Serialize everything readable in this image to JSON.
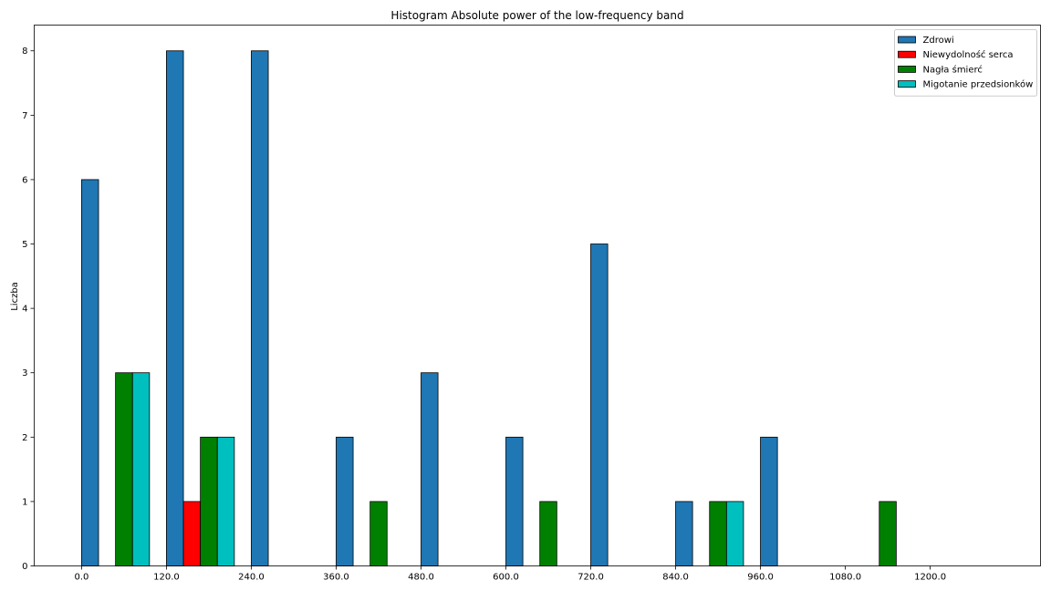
{
  "chart_data": {
    "type": "bar",
    "title": "Histogram Absolute power of the low-frequency band",
    "xlabel": "",
    "ylabel": "Liczba",
    "xlim": [
      -67,
      1356
    ],
    "ylim": [
      0,
      8.4
    ],
    "x_ticks": [
      "0.0",
      "120.0",
      "240.0",
      "360.0",
      "480.0",
      "600.0",
      "720.0",
      "840.0",
      "960.0",
      "1080.0",
      "1200.0"
    ],
    "x_tick_values": [
      0,
      120,
      240,
      360,
      480,
      600,
      720,
      840,
      960,
      1080,
      1200
    ],
    "y_ticks": [
      "0",
      "1",
      "2",
      "3",
      "4",
      "5",
      "6",
      "7",
      "8"
    ],
    "y_tick_values": [
      0,
      1,
      2,
      3,
      4,
      5,
      6,
      7,
      8
    ],
    "grid": false,
    "legend_position": "top-right",
    "series": [
      {
        "name": "Zdrowi",
        "color": "#1f77b4",
        "bars": [
          {
            "x": 0,
            "value": 6
          },
          {
            "x": 120,
            "value": 8
          },
          {
            "x": 240,
            "value": 8
          },
          {
            "x": 360,
            "value": 2
          },
          {
            "x": 480,
            "value": 3
          },
          {
            "x": 600,
            "value": 2
          },
          {
            "x": 720,
            "value": 5
          },
          {
            "x": 840,
            "value": 1
          },
          {
            "x": 960,
            "value": 2
          }
        ]
      },
      {
        "name": "Niewydolność serca",
        "color": "#ff0000",
        "bars": [
          {
            "x": 144,
            "value": 1
          }
        ]
      },
      {
        "name": "Nagła śmierć",
        "color": "#008000",
        "bars": [
          {
            "x": 48,
            "value": 3
          },
          {
            "x": 168,
            "value": 2
          },
          {
            "x": 408,
            "value": 1
          },
          {
            "x": 648,
            "value": 1
          },
          {
            "x": 888,
            "value": 1
          },
          {
            "x": 1128,
            "value": 1
          }
        ]
      },
      {
        "name": "Migotanie przedsionków",
        "color": "#00bfbf",
        "bars": [
          {
            "x": 72,
            "value": 3
          },
          {
            "x": 192,
            "value": 2
          },
          {
            "x": 912,
            "value": 1
          }
        ]
      }
    ]
  }
}
